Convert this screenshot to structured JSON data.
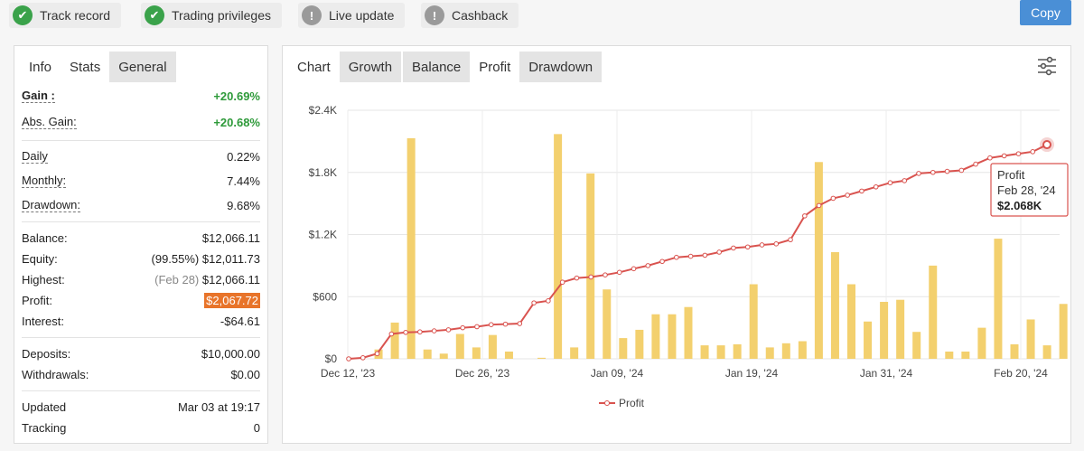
{
  "badges": [
    {
      "label": "Track record",
      "status": "ok",
      "icon": "check-icon"
    },
    {
      "label": "Trading privileges",
      "status": "ok",
      "icon": "check-icon"
    },
    {
      "label": "Live update",
      "status": "warn",
      "icon": "exclamation-icon"
    },
    {
      "label": "Cashback",
      "status": "warn",
      "icon": "exclamation-icon"
    }
  ],
  "copy_button": "Copy",
  "left_tabs": [
    "Info",
    "Stats",
    "General"
  ],
  "stats": {
    "gain": {
      "label": "Gain :",
      "value": "+20.69%"
    },
    "abs_gain": {
      "label": "Abs. Gain:",
      "value": "+20.68%"
    },
    "daily": {
      "label": "Daily",
      "value": "0.22%"
    },
    "monthly": {
      "label": "Monthly:",
      "value": "7.44%"
    },
    "drawdown": {
      "label": "Drawdown:",
      "value": "9.68%"
    },
    "balance": {
      "label": "Balance:",
      "value": "$12,066.11"
    },
    "equity": {
      "label": "Equity:",
      "note": "(99.55%)",
      "value": "$12,011.73"
    },
    "highest": {
      "label": "Highest:",
      "note": "(Feb 28)",
      "value": "$12,066.11"
    },
    "profit": {
      "label": "Profit:",
      "value": "$2,067.72"
    },
    "interest": {
      "label": "Interest:",
      "value": "-$64.61"
    },
    "deposits": {
      "label": "Deposits:",
      "value": "$10,000.00"
    },
    "withdrawals": {
      "label": "Withdrawals:",
      "value": "$0.00"
    },
    "updated": {
      "label": "Updated",
      "value": "Mar 03 at 19:17"
    },
    "tracking": {
      "label": "Tracking",
      "value": "0"
    }
  },
  "chart_tabs": [
    "Chart",
    "Growth",
    "Balance",
    "Profit",
    "Drawdown"
  ],
  "active_chart_tab": "Profit",
  "colors": {
    "line": "#d9534f",
    "bar": "#f3d06e",
    "green": "#2e9a3a",
    "highlight": "#e8742a",
    "accent": "#4a8fd6"
  },
  "chart_data": {
    "type": "line+bar",
    "title": "",
    "xlabel": "",
    "ylabel": "",
    "ylim": [
      0,
      2400
    ],
    "yticks": [
      "$0",
      "$600",
      "$1.2K",
      "$1.8K",
      "$2.4K"
    ],
    "xticks": [
      "Dec 12, '23",
      "Dec 26, '23",
      "Jan 09, '24",
      "Jan 19, '24",
      "Jan 31, '24",
      "Feb 20, '24"
    ],
    "legend": "Profit",
    "legend_position": "bottom",
    "tooltip": {
      "title": "Profit",
      "date": "Feb 28, '24",
      "value": "$2.068K"
    },
    "line_series": {
      "name": "Profit",
      "values": [
        0,
        10,
        50,
        240,
        255,
        260,
        270,
        280,
        300,
        310,
        330,
        335,
        340,
        540,
        560,
        740,
        780,
        790,
        810,
        835,
        870,
        900,
        940,
        980,
        990,
        1000,
        1030,
        1070,
        1080,
        1100,
        1110,
        1150,
        1380,
        1480,
        1550,
        1580,
        1620,
        1660,
        1700,
        1720,
        1790,
        1800,
        1810,
        1820,
        1880,
        1940,
        1960,
        1980,
        2000,
        2068
      ]
    },
    "bar_series": {
      "values": [
        0,
        90,
        350,
        2130,
        90,
        50,
        240,
        110,
        230,
        70,
        0,
        10,
        2170,
        110,
        1790,
        670,
        200,
        280,
        430,
        430,
        500,
        130,
        130,
        140,
        720,
        110,
        150,
        170,
        1900,
        1030,
        720,
        360,
        550,
        570,
        260,
        900,
        70,
        70,
        300,
        1160,
        140,
        380,
        130,
        530
      ]
    }
  }
}
